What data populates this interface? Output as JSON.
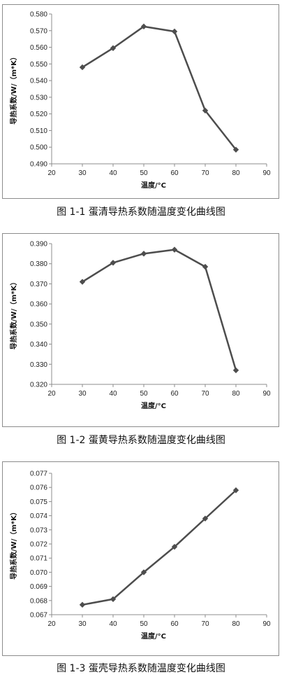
{
  "chart_data": [
    {
      "type": "line",
      "x": [
        30,
        40,
        50,
        60,
        70,
        80
      ],
      "series": [
        {
          "values": [
            0.548,
            0.5595,
            0.5725,
            0.5695,
            0.522,
            0.4985
          ]
        }
      ],
      "xlabel": "温度/°C",
      "ylabel": "导热系数/W/（m*K）",
      "xlim": [
        20,
        90
      ],
      "xticks": [
        "20",
        "30",
        "40",
        "50",
        "60",
        "70",
        "80",
        "90"
      ],
      "ylim": [
        0.49,
        0.58
      ],
      "yticks": [
        "0.490",
        "0.500",
        "0.510",
        "0.520",
        "0.530",
        "0.540",
        "0.550",
        "0.560",
        "0.570",
        "0.580"
      ],
      "marker": "diamond",
      "line_color": "#4d4d4d",
      "grid": false,
      "caption": "图 1-1 蛋清导热系数随温度变化曲线图"
    },
    {
      "type": "line",
      "x": [
        30,
        40,
        50,
        60,
        70,
        80
      ],
      "series": [
        {
          "values": [
            0.371,
            0.3805,
            0.385,
            0.387,
            0.3785,
            0.327
          ]
        }
      ],
      "xlabel": "温度/°C",
      "ylabel": "导热系数/W/（m*K）",
      "xlim": [
        20,
        90
      ],
      "xticks": [
        "20",
        "30",
        "40",
        "50",
        "60",
        "70",
        "80",
        "90"
      ],
      "ylim": [
        0.32,
        0.39
      ],
      "yticks": [
        "0.320",
        "0.330",
        "0.340",
        "0.350",
        "0.360",
        "0.370",
        "0.380",
        "0.390"
      ],
      "marker": "diamond",
      "line_color": "#4d4d4d",
      "grid": false,
      "caption": "图 1-2 蛋黄导热系数随温度变化曲线图"
    },
    {
      "type": "line",
      "x": [
        30,
        40,
        50,
        60,
        70,
        80
      ],
      "series": [
        {
          "values": [
            0.0677,
            0.0681,
            0.07,
            0.0718,
            0.0738,
            0.0758
          ]
        }
      ],
      "xlabel": "温度/°C",
      "ylabel": "导热系数/W/（m*K）",
      "xlim": [
        20,
        90
      ],
      "xticks": [
        "20",
        "30",
        "40",
        "50",
        "60",
        "70",
        "80",
        "90"
      ],
      "ylim": [
        0.067,
        0.077
      ],
      "yticks": [
        "0.067",
        "0.068",
        "0.069",
        "0.070",
        "0.071",
        "0.072",
        "0.073",
        "0.074",
        "0.075",
        "0.076",
        "0.077"
      ],
      "marker": "diamond",
      "line_color": "#4d4d4d",
      "grid": false,
      "caption": "图 1-3 蛋壳导热系数随温度变化曲线图"
    }
  ]
}
